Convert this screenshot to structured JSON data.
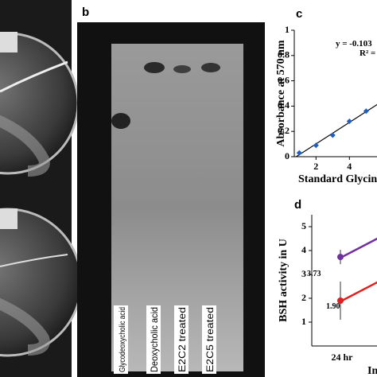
{
  "panel_labels": [
    "b",
    "c",
    "d"
  ],
  "tlc": {
    "lanes": [
      "Glycodeoxycholic acid",
      "Deoxycholic acid",
      "E2C2 treated",
      "E2C5 treated"
    ]
  },
  "chart_c": {
    "type": "scatter",
    "equation": "y = -0.103",
    "r_squared": "R² =",
    "x_label": "Standard Glycin",
    "y_label": "Absorbance at 570 nm",
    "x": [
      1,
      2,
      3,
      4,
      5
    ],
    "values": [
      0.03,
      0.09,
      0.17,
      0.28,
      0.36
    ],
    "color": "#1f5fbf",
    "xlim": [
      0.7,
      5.7
    ],
    "ylim": [
      0,
      1
    ],
    "xticks": [
      2,
      4
    ],
    "yticks": [
      0,
      0.2,
      0.4,
      0.6,
      0.8,
      1
    ]
  },
  "chart_d": {
    "type": "line",
    "x_label": "In",
    "y_label": "BSH activity in U",
    "categories": [
      "24 hr"
    ],
    "series": [
      {
        "color": "#7030a0",
        "values": [
          3.73
        ],
        "value_labels": [
          "3.73"
        ],
        "errors": [
          0.3
        ]
      },
      {
        "color": "#e02020",
        "values": [
          1.9
        ],
        "value_labels": [
          "1.90"
        ],
        "errors": [
          0.8
        ]
      }
    ],
    "ylim": [
      0,
      5.5
    ],
    "yticks": [
      1,
      2,
      3,
      4,
      5
    ]
  }
}
